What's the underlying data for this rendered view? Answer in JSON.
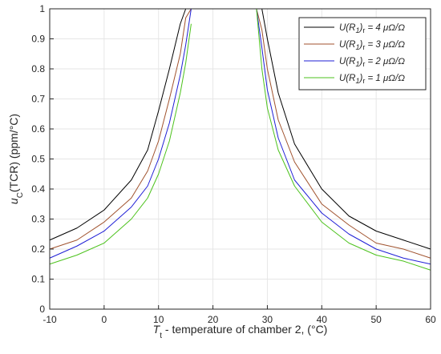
{
  "chart_data": {
    "type": "line",
    "title": "",
    "xlabel": {
      "main": "T",
      "sub": "t",
      "rest": " - temperature of chamber 2, (°C)"
    },
    "ylabel": {
      "main": "u",
      "sub": "C",
      "rest": "(TCR) (ppm/°C)"
    },
    "xlim": [
      -10,
      60
    ],
    "ylim": [
      0,
      1
    ],
    "xticks": [
      -10,
      0,
      10,
      20,
      30,
      40,
      50,
      60
    ],
    "yticks": [
      0,
      0.1,
      0.2,
      0.3,
      0.4,
      0.5,
      0.6,
      0.7,
      0.8,
      0.9,
      1
    ],
    "xtick_labels": [
      "-10",
      "0",
      "10",
      "20",
      "30",
      "40",
      "50",
      "60"
    ],
    "ytick_labels": [
      "0",
      "0.1",
      "0.2",
      "0.3",
      "0.4",
      "0.5",
      "0.6",
      "0.7",
      "0.8",
      "0.9",
      "1"
    ],
    "grid": true,
    "legend_position": "top-right",
    "x": [
      -10,
      -5,
      0,
      5,
      8,
      10,
      12,
      14,
      15,
      16,
      28,
      29,
      30,
      32,
      35,
      40,
      45,
      50,
      55,
      60
    ],
    "series": [
      {
        "name": "U(R₁)ᵣ = 4 μΩ/Ω",
        "color": "#000000",
        "values": [
          0.23,
          0.27,
          0.33,
          0.43,
          0.53,
          0.66,
          0.8,
          0.95,
          1.0,
          1.0,
          1.0,
          1.0,
          0.9,
          0.72,
          0.55,
          0.4,
          0.31,
          0.26,
          0.23,
          0.2
        ]
      },
      {
        "name": "U(R₁)ᵣ = 3 μΩ/Ω",
        "color": "#a0522d",
        "values": [
          0.2,
          0.23,
          0.29,
          0.37,
          0.46,
          0.56,
          0.7,
          0.85,
          0.97,
          1.0,
          1.0,
          0.93,
          0.8,
          0.63,
          0.49,
          0.35,
          0.28,
          0.22,
          0.2,
          0.17
        ]
      },
      {
        "name": "U(R₁)ᵣ = 2 μΩ/Ω",
        "color": "#1f1fd6",
        "values": [
          0.17,
          0.21,
          0.26,
          0.34,
          0.41,
          0.5,
          0.62,
          0.78,
          0.88,
          1.0,
          1.0,
          0.87,
          0.73,
          0.57,
          0.43,
          0.32,
          0.25,
          0.2,
          0.17,
          0.15
        ]
      },
      {
        "name": "U(R₁)ᵣ = 1 μΩ/Ω",
        "color": "#4cc21c",
        "values": [
          0.15,
          0.18,
          0.22,
          0.3,
          0.37,
          0.45,
          0.56,
          0.72,
          0.82,
          0.95,
          1.0,
          0.8,
          0.67,
          0.53,
          0.41,
          0.29,
          0.22,
          0.18,
          0.16,
          0.13
        ]
      }
    ],
    "legend_entries": [
      {
        "lhs": "U(R",
        "sub1": "1",
        "paren": ")",
        "sub2": "r",
        "rhs": " = 4 μΩ/Ω"
      },
      {
        "lhs": "U(R",
        "sub1": "1",
        "paren": ")",
        "sub2": "r",
        "rhs": " = 3 μΩ/Ω"
      },
      {
        "lhs": "U(R",
        "sub1": "1",
        "paren": ")",
        "sub2": "r",
        "rhs": " = 2 μΩ/Ω"
      },
      {
        "lhs": "U(R",
        "sub1": "1",
        "paren": ")",
        "sub2": "r",
        "rhs": " = 1 μΩ/Ω"
      }
    ]
  }
}
